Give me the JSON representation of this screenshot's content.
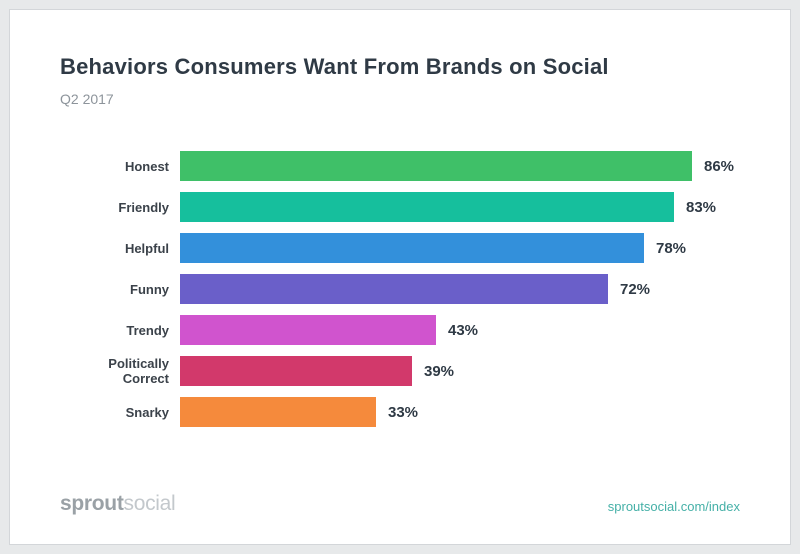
{
  "header": {
    "title": "Behaviors Consumers Want From Brands on Social",
    "subtitle": "Q2 2017"
  },
  "footer": {
    "logo_part1": "sprout",
    "logo_part2": "social",
    "link": "sproutsocial.com/index",
    "link_color": "#45b0a7",
    "logo_color_primary": "#9aa1a6",
    "logo_color_secondary": "#c3c8cc"
  },
  "chart_data": {
    "type": "bar",
    "orientation": "horizontal",
    "title": "Behaviors Consumers Want From Brands on Social",
    "subtitle": "Q2 2017",
    "categories": [
      "Honest",
      "Friendly",
      "Helpful",
      "Funny",
      "Trendy",
      "Politically Correct",
      "Snarky"
    ],
    "values": [
      86,
      83,
      78,
      72,
      43,
      39,
      33
    ],
    "value_suffix": "%",
    "bar_colors": [
      "#3fc068",
      "#16bf9d",
      "#3390db",
      "#6a5fc9",
      "#d054ce",
      "#d2396b",
      "#f58a3c"
    ],
    "xlim": [
      0,
      100
    ],
    "grid": false,
    "legend": false,
    "value_labels": "end-of-bar",
    "axis_ticks": "none"
  }
}
